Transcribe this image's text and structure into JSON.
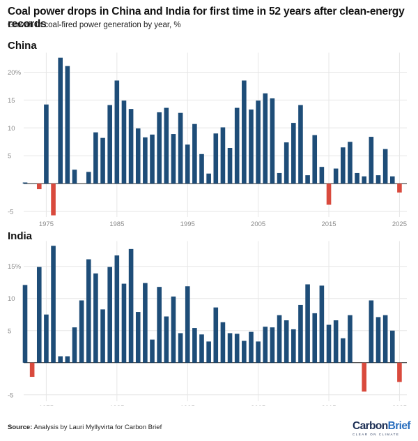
{
  "title": "Coal power drops in China and India for first time in 52 years after clean-energy records",
  "subtitle": "Growth in coal-fired power generation by year, %",
  "source_label": "Source:",
  "source_text": " Analysis by Lauri Myllyvirta for Carbon Brief",
  "logo": {
    "part1": "Carbon",
    "part2": "Brief",
    "tagline": "CLEAR ON CLIMATE"
  },
  "colors": {
    "positive": "#1e4d78",
    "negative": "#d94a3d",
    "grid": "#e6e6e6",
    "tick": "#8a8a8a"
  },
  "chart_data": [
    {
      "type": "bar",
      "title": "China",
      "years": [
        1972,
        1973,
        1974,
        1975,
        1976,
        1977,
        1978,
        1979,
        1980,
        1981,
        1982,
        1983,
        1984,
        1985,
        1986,
        1987,
        1988,
        1989,
        1990,
        1991,
        1992,
        1993,
        1994,
        1995,
        1996,
        1997,
        1998,
        1999,
        2000,
        2001,
        2002,
        2003,
        2004,
        2005,
        2006,
        2007,
        2008,
        2009,
        2010,
        2011,
        2012,
        2013,
        2014,
        2015,
        2016,
        2017,
        2018,
        2019,
        2020,
        2021,
        2022,
        2023,
        2024,
        2025
      ],
      "values": [
        0.2,
        0,
        -1,
        14.2,
        -5.7,
        22.6,
        21.1,
        2.5,
        0,
        2.1,
        9.2,
        8.2,
        14.1,
        18.5,
        14.9,
        13.4,
        9.9,
        8.3,
        8.8,
        12.8,
        13.6,
        8.9,
        12.7,
        7,
        10.7,
        5.3,
        1.8,
        9,
        10.1,
        6.4,
        13.6,
        18.5,
        13.3,
        14.9,
        16.2,
        15.3,
        1.9,
        7.4,
        10.9,
        14.1,
        1.5,
        8.7,
        3,
        -3.8,
        2.7,
        6.5,
        7.5,
        1.9,
        1.3,
        8.4,
        1.5,
        6.2,
        1.3,
        -1.6
      ],
      "yticks": [
        -5,
        5,
        10,
        15,
        20
      ],
      "ytick_labels": [
        "-5",
        "5",
        "10",
        "15",
        "20%"
      ],
      "ylim": [
        -6,
        23
      ],
      "xticks": [
        "1975",
        "1985",
        "1995",
        "2005",
        "2015",
        "2025"
      ]
    },
    {
      "type": "bar",
      "title": "India",
      "years": [
        1972,
        1973,
        1974,
        1975,
        1976,
        1977,
        1978,
        1979,
        1980,
        1981,
        1982,
        1983,
        1984,
        1985,
        1986,
        1987,
        1988,
        1989,
        1990,
        1991,
        1992,
        1993,
        1994,
        1995,
        1996,
        1997,
        1998,
        1999,
        2000,
        2001,
        2002,
        2003,
        2004,
        2005,
        2006,
        2007,
        2008,
        2009,
        2010,
        2011,
        2012,
        2013,
        2014,
        2015,
        2016,
        2017,
        2018,
        2019,
        2020,
        2021,
        2022,
        2023,
        2024,
        2025
      ],
      "values": [
        12.1,
        -2.2,
        14.9,
        7.5,
        18.2,
        1,
        1,
        5.5,
        9.7,
        16.1,
        13.9,
        8.3,
        14.9,
        16.7,
        12.3,
        17.7,
        7.9,
        12.4,
        3.6,
        11.8,
        7.2,
        10.3,
        4.6,
        11.9,
        5.4,
        4.4,
        3.3,
        8.6,
        6.3,
        4.6,
        4.5,
        3.4,
        4.8,
        3.3,
        5.6,
        5.5,
        7.4,
        6.6,
        5.2,
        9,
        12.2,
        7.7,
        12,
        5.9,
        6.6,
        3.8,
        7.4,
        0,
        -4.5,
        9.7,
        7.1,
        7.4,
        5,
        -3
      ],
      "yticks": [
        -5,
        5,
        10,
        15
      ],
      "ytick_labels": [
        "-5",
        "5",
        "10",
        "15%"
      ],
      "ylim": [
        -6,
        18.5
      ],
      "xticks": [
        "1975",
        "1985",
        "1995",
        "2005",
        "2015",
        "2025"
      ]
    }
  ]
}
